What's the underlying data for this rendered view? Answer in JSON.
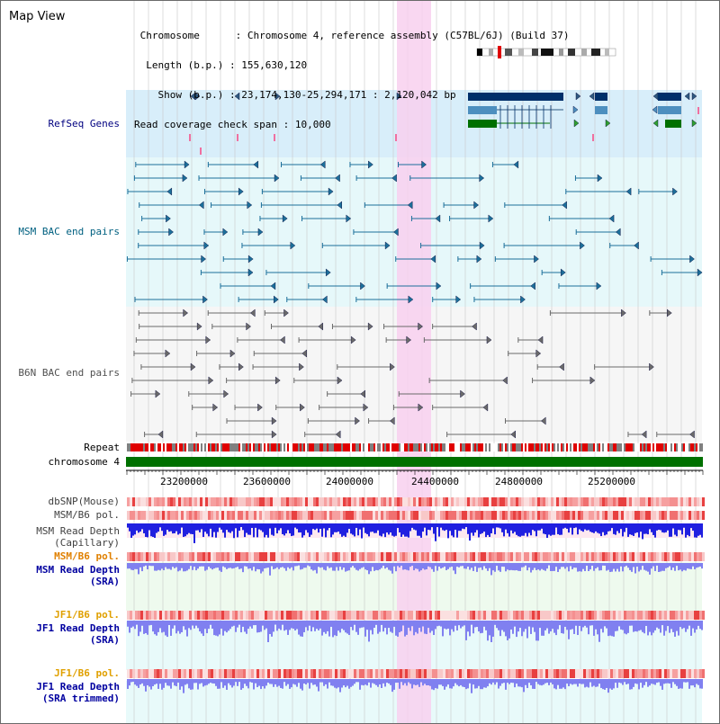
{
  "app": {
    "title": "Map View"
  },
  "info": {
    "chromosome_key": "Chromosome",
    "chromosome_value": "Chromosome 4, reference assembly (C57BL/6J) (Build 37)",
    "length_key": "Length (b.p.)",
    "length_value": "155,630,120",
    "show_key": "Show (b.p.)",
    "show_value": "23,174,130-25,294,171 : 2,120,042 bp",
    "coverage_key": "Read coverage check span",
    "coverage_value": "10,000"
  },
  "tracks": {
    "refseq": {
      "label": "RefSeq Genes",
      "color": "#000080"
    },
    "msm_bac": {
      "label": "MSM BAC end pairs",
      "color": "#006080"
    },
    "b6n_bac": {
      "label": "B6N BAC end pairs",
      "color": "#505050"
    },
    "repeat": {
      "label": "Repeat"
    },
    "chromosome": {
      "label": "chromosome 4"
    },
    "dbsnp": {
      "label": "dbSNP(Mouse)",
      "color": "#404040"
    },
    "msm_b6_pol": {
      "label": "MSM/B6 pol.",
      "color": "#404040"
    },
    "msm_depth_cap": {
      "label_1": "MSM Read Depth",
      "label_2": "(Capillary)",
      "color": "#404040"
    },
    "msm_b6_pol_2": {
      "label": "MSM/B6 pol.",
      "color": "#e08000"
    },
    "msm_depth_sra": {
      "label_1": "MSM Read Depth",
      "label_2": "(SRA)",
      "color": "#0000a0"
    },
    "jf1_b6_pol": {
      "label": "JF1/B6 pol.",
      "color": "#e0a000"
    },
    "jf1_depth_sra": {
      "label_1": "JF1 Read Depth",
      "label_2": "(SRA)",
      "color": "#0000a0"
    },
    "jf1_b6_pol_2": {
      "label": "JF1/B6 pol.",
      "color": "#e0a000"
    },
    "jf1_depth_trim": {
      "label_1": "JF1 Read Depth",
      "label_2": "(SRA trimmed)",
      "color": "#0000a0"
    }
  },
  "axis": {
    "ticks": [
      "23200000",
      "23600000",
      "24000000",
      "24400000",
      "24800000",
      "25200000"
    ]
  },
  "colors": {
    "refseq_bg": "#d8eefa",
    "msm_bg": "#e6f8fa",
    "b6n_bg": "#f6f6f6",
    "highlight": "#f8d0ee",
    "chromosome": "#007000",
    "repeat": "#e00000",
    "depth_blue": "#2020e0",
    "depth_light": "#8080f0"
  }
}
